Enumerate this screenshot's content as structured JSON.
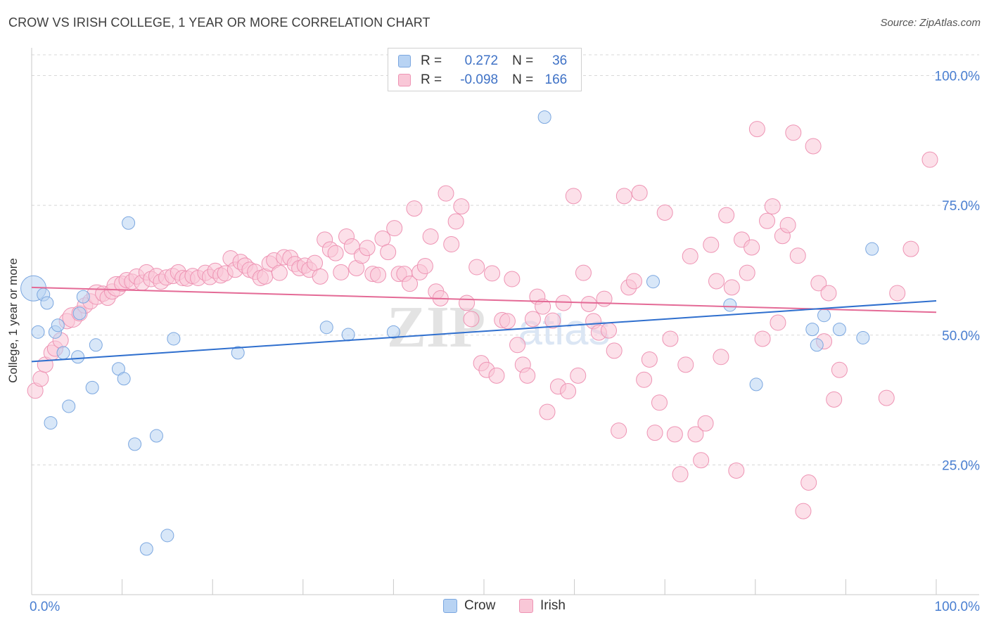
{
  "title": "CROW VS IRISH COLLEGE, 1 YEAR OR MORE CORRELATION CHART",
  "source": "Source: ZipAtlas.com",
  "watermark": {
    "zip": "ZIP",
    "atlas": "atlas"
  },
  "legend": {
    "crow": {
      "r_label": "R =",
      "r_value": "0.272",
      "n_label": "N =",
      "n_value": "36"
    },
    "irish": {
      "r_label": "R =",
      "r_value": "-0.098",
      "n_label": "N =",
      "n_value": "166"
    }
  },
  "bottom_legend": {
    "crow": "Crow",
    "irish": "Irish"
  },
  "colors": {
    "crow_fill": "#b8d3f3",
    "crow_stroke": "#7ba7e0",
    "crow_line": "#2f6fce",
    "irish_fill": "#f9c7d7",
    "irish_stroke": "#ee94b4",
    "irish_line": "#e46a96",
    "tick_label": "#4a7fd1",
    "grid": "#d8d8d8"
  },
  "chart_data": {
    "type": "scatter",
    "title": "CROW VS IRISH COLLEGE, 1 YEAR OR MORE CORRELATION CHART",
    "xlabel": "",
    "ylabel": "College, 1 year or more",
    "xlim": [
      0,
      100
    ],
    "ylim": [
      0,
      104
    ],
    "x_tick_labels": [
      "0.0%",
      "100.0%"
    ],
    "y_ticks": [
      25,
      50,
      75,
      100
    ],
    "y_tick_labels": [
      "25.0%",
      "50.0%",
      "75.0%",
      "100.0%"
    ],
    "series": [
      {
        "name": "Crow",
        "r": 0.272,
        "n": 36,
        "trend": {
          "x": [
            0,
            100
          ],
          "y": [
            44.9,
            56.6
          ]
        },
        "points": [
          [
            0.2,
            59,
            18
          ],
          [
            0.7,
            50.6,
            9
          ],
          [
            1.3,
            57.8,
            9
          ],
          [
            1.7,
            56.2,
            9
          ],
          [
            2.1,
            33.1,
            9
          ],
          [
            2.6,
            50.6,
            9
          ],
          [
            2.9,
            51.9,
            9
          ],
          [
            3.5,
            46.6,
            9
          ],
          [
            4.1,
            36.3,
            9
          ],
          [
            5.1,
            45.8,
            9
          ],
          [
            5.3,
            54.2,
            9
          ],
          [
            5.7,
            57.4,
            9
          ],
          [
            6.7,
            39.9,
            9
          ],
          [
            7.1,
            48.1,
            9
          ],
          [
            9.6,
            43.5,
            9
          ],
          [
            10.2,
            41.6,
            9
          ],
          [
            10.7,
            71.6,
            9
          ],
          [
            11.4,
            29,
            9
          ],
          [
            12.7,
            8.8,
            9
          ],
          [
            13.8,
            30.6,
            9
          ],
          [
            15,
            11.4,
            9
          ],
          [
            15.7,
            49.3,
            9
          ],
          [
            22.8,
            46.6,
            9
          ],
          [
            32.6,
            51.5,
            9
          ],
          [
            35,
            50.1,
            9
          ],
          [
            40,
            50.6,
            9
          ],
          [
            56.7,
            92,
            9
          ],
          [
            68.7,
            60.3,
            9
          ],
          [
            77.2,
            55.8,
            9
          ],
          [
            80.1,
            40.5,
            9
          ],
          [
            86.3,
            51.1,
            9
          ],
          [
            86.8,
            48.1,
            9
          ],
          [
            87.6,
            53.8,
            9
          ],
          [
            89.3,
            51.1,
            9
          ],
          [
            91.9,
            49.5,
            9
          ],
          [
            92.9,
            66.6,
            9
          ]
        ]
      },
      {
        "name": "Irish",
        "r": -0.098,
        "n": 166,
        "trend": {
          "x": [
            0,
            100
          ],
          "y": [
            59.2,
            54.4
          ]
        },
        "points": [
          [
            0.4,
            39.3,
            11
          ],
          [
            1,
            41.6,
            11
          ],
          [
            1.5,
            44.3,
            11
          ],
          [
            2.2,
            46.6,
            11
          ],
          [
            2.6,
            47.4,
            11
          ],
          [
            3.2,
            49,
            11
          ],
          [
            3.9,
            52.7,
            11
          ],
          [
            4.5,
            53.4,
            14
          ],
          [
            5.3,
            54.2,
            11
          ],
          [
            5.9,
            55.7,
            11
          ],
          [
            6.5,
            56.5,
            11
          ],
          [
            7.2,
            57.8,
            14
          ],
          [
            7.9,
            58,
            11
          ],
          [
            8.4,
            57.2,
            11
          ],
          [
            8.9,
            58.4,
            11
          ],
          [
            9.4,
            59.4,
            14
          ],
          [
            10,
            59.9,
            11
          ],
          [
            10.5,
            60.6,
            11
          ],
          [
            11.1,
            60.3,
            11
          ],
          [
            11.6,
            61.3,
            11
          ],
          [
            12.2,
            60.1,
            11
          ],
          [
            12.7,
            62.1,
            11
          ],
          [
            13.2,
            60.8,
            11
          ],
          [
            13.8,
            61.4,
            11
          ],
          [
            14.3,
            60.3,
            11
          ],
          [
            14.9,
            61.1,
            11
          ],
          [
            15.6,
            61.4,
            11
          ],
          [
            16.2,
            62.1,
            11
          ],
          [
            16.7,
            61,
            11
          ],
          [
            17.2,
            60.9,
            11
          ],
          [
            17.8,
            61.4,
            11
          ],
          [
            18.4,
            61,
            11
          ],
          [
            19.2,
            62,
            11
          ],
          [
            19.7,
            61.2,
            11
          ],
          [
            20.3,
            62.4,
            11
          ],
          [
            20.9,
            61.5,
            11
          ],
          [
            21.4,
            61.9,
            11
          ],
          [
            22,
            64.8,
            11
          ],
          [
            22.5,
            62.6,
            11
          ],
          [
            23.1,
            64.1,
            11
          ],
          [
            23.6,
            63.4,
            11
          ],
          [
            24.1,
            62.6,
            11
          ],
          [
            24.7,
            62.2,
            11
          ],
          [
            25.3,
            61,
            11
          ],
          [
            25.8,
            61.3,
            11
          ],
          [
            26.3,
            63.8,
            11
          ],
          [
            26.8,
            64.4,
            11
          ],
          [
            27.4,
            62,
            11
          ],
          [
            27.9,
            65,
            11
          ],
          [
            28.6,
            64.9,
            11
          ],
          [
            29.1,
            63.7,
            11
          ],
          [
            29.6,
            62.9,
            11
          ],
          [
            30.2,
            63.4,
            11
          ],
          [
            30.7,
            62.6,
            11
          ],
          [
            31.3,
            63.9,
            11
          ],
          [
            31.9,
            61.3,
            11
          ],
          [
            32.4,
            68.4,
            11
          ],
          [
            33,
            66.5,
            11
          ],
          [
            33.6,
            65.8,
            11
          ],
          [
            34.2,
            62.1,
            11
          ],
          [
            34.8,
            69,
            11
          ],
          [
            35.4,
            67.1,
            11
          ],
          [
            35.9,
            62.9,
            11
          ],
          [
            36.5,
            65.3,
            11
          ],
          [
            37.1,
            66.8,
            11
          ],
          [
            37.7,
            61.8,
            11
          ],
          [
            38.3,
            61.6,
            11
          ],
          [
            38.8,
            68.6,
            11
          ],
          [
            39.4,
            66,
            11
          ],
          [
            40.1,
            70.6,
            11
          ],
          [
            40.6,
            61.8,
            11
          ],
          [
            41.2,
            61.8,
            11
          ],
          [
            41.8,
            59.9,
            11
          ],
          [
            42.3,
            74.4,
            11
          ],
          [
            42.9,
            62.1,
            11
          ],
          [
            43.5,
            63.3,
            11
          ],
          [
            44.1,
            69,
            11
          ],
          [
            44.7,
            58.4,
            11
          ],
          [
            45.2,
            57.1,
            11
          ],
          [
            45.8,
            77.3,
            11
          ],
          [
            46.4,
            67.5,
            11
          ],
          [
            46.9,
            71.9,
            11
          ],
          [
            47.5,
            74.8,
            11
          ],
          [
            48.1,
            56.2,
            11
          ],
          [
            48.6,
            53.1,
            11
          ],
          [
            49.2,
            63.1,
            11
          ],
          [
            49.7,
            44.6,
            11
          ],
          [
            50.3,
            43.3,
            11
          ],
          [
            50.9,
            61.9,
            11
          ],
          [
            51.4,
            42.2,
            11
          ],
          [
            52,
            52.9,
            11
          ],
          [
            52.6,
            52.7,
            11
          ],
          [
            53.1,
            60.8,
            11
          ],
          [
            53.7,
            48.1,
            11
          ],
          [
            54.3,
            44.3,
            11
          ],
          [
            54.8,
            42.2,
            11
          ],
          [
            55.4,
            53.1,
            11
          ],
          [
            55.9,
            57.4,
            11
          ],
          [
            56.5,
            55.5,
            11
          ],
          [
            57,
            35.2,
            11
          ],
          [
            57.6,
            52.8,
            11
          ],
          [
            58.2,
            40.1,
            11
          ],
          [
            58.8,
            56.2,
            11
          ],
          [
            59.3,
            39.2,
            11
          ],
          [
            59.9,
            76.8,
            11
          ],
          [
            60.4,
            42.2,
            11
          ],
          [
            61,
            62,
            11
          ],
          [
            61.6,
            56,
            11
          ],
          [
            62.1,
            52.7,
            11
          ],
          [
            62.7,
            50.5,
            11
          ],
          [
            63.3,
            57,
            11
          ],
          [
            63.8,
            50.9,
            11
          ],
          [
            64.4,
            47,
            11
          ],
          [
            64.9,
            31.6,
            11
          ],
          [
            65.5,
            76.8,
            11
          ],
          [
            66,
            59.2,
            11
          ],
          [
            66.6,
            60.4,
            11
          ],
          [
            67.2,
            77.4,
            11
          ],
          [
            67.7,
            41.4,
            11
          ],
          [
            68.3,
            45.3,
            11
          ],
          [
            68.9,
            31.2,
            11
          ],
          [
            69.4,
            37,
            11
          ],
          [
            70,
            73.6,
            11
          ],
          [
            70.6,
            49.3,
            11
          ],
          [
            71.1,
            30.9,
            11
          ],
          [
            71.7,
            23.2,
            11
          ],
          [
            72.3,
            44.3,
            11
          ],
          [
            72.8,
            65.2,
            11
          ],
          [
            73.4,
            30.9,
            11
          ],
          [
            74,
            25.9,
            11
          ],
          [
            74.5,
            33,
            11
          ],
          [
            75.1,
            67.4,
            11
          ],
          [
            75.7,
            60.4,
            11
          ],
          [
            76.2,
            45.8,
            11
          ],
          [
            76.8,
            73.1,
            11
          ],
          [
            77.4,
            59.2,
            11
          ],
          [
            77.9,
            23.9,
            11
          ],
          [
            78.5,
            68.4,
            11
          ],
          [
            79.1,
            62,
            11
          ],
          [
            79.6,
            66.9,
            11
          ],
          [
            80.2,
            89.7,
            11
          ],
          [
            80.8,
            49.3,
            11
          ],
          [
            81.3,
            72,
            11
          ],
          [
            81.9,
            74.8,
            11
          ],
          [
            82.5,
            52.4,
            11
          ],
          [
            83,
            69.1,
            11
          ],
          [
            83.6,
            71.2,
            11
          ],
          [
            84.2,
            89,
            11
          ],
          [
            84.7,
            65.3,
            11
          ],
          [
            85.3,
            16.1,
            11
          ],
          [
            85.9,
            21.6,
            11
          ],
          [
            86.4,
            86.4,
            11
          ],
          [
            87,
            60,
            11
          ],
          [
            87.6,
            48.8,
            11
          ],
          [
            88.1,
            58.1,
            11
          ],
          [
            88.7,
            37.6,
            11
          ],
          [
            89.3,
            43.3,
            11
          ],
          [
            94.5,
            37.9,
            11
          ],
          [
            95.7,
            58.1,
            11
          ],
          [
            97.2,
            66.6,
            11
          ],
          [
            99.3,
            83.8,
            11
          ]
        ]
      }
    ]
  }
}
